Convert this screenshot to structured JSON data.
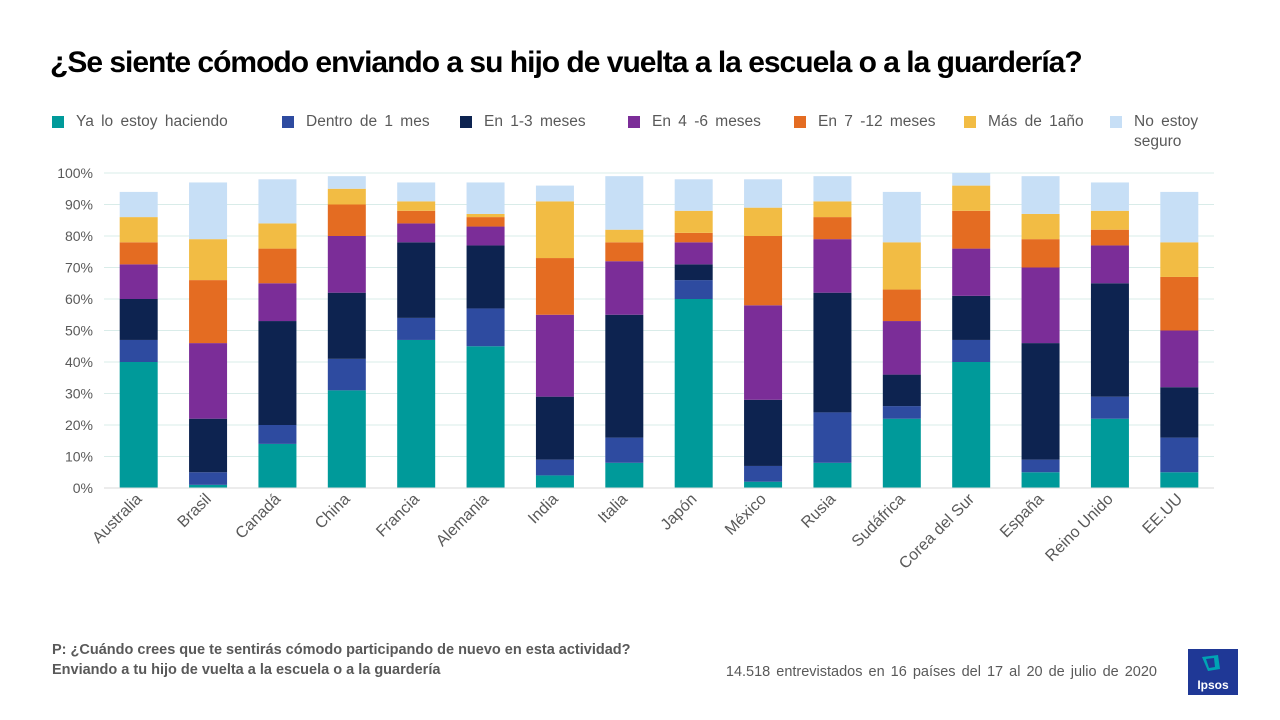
{
  "chart_data": {
    "type": "bar",
    "stacked": true,
    "title": "¿Se siente cómodo enviando a su hijo de vuelta a la escuela o a la guardería?",
    "xlabel": "",
    "ylabel": "",
    "ylim": [
      0,
      100
    ],
    "yticks": [
      "0%",
      "10%",
      "20%",
      "30%",
      "40%",
      "50%",
      "60%",
      "70%",
      "80%",
      "90%",
      "100%"
    ],
    "grid": true,
    "legend_position": "top",
    "categories": [
      "Australia",
      "Brasil",
      "Canadá",
      "China",
      "Francia",
      "Alemania",
      "India",
      "Italia",
      "Japón",
      "México",
      "Rusia",
      "Sudáfrica",
      "Corea del Sur",
      "España",
      "Reino Unido",
      "EE.UU"
    ],
    "series": [
      {
        "name": "Ya lo estoy haciendo",
        "color": "#009a9a",
        "values": [
          40,
          1,
          14,
          31,
          47,
          45,
          4,
          8,
          60,
          2,
          8,
          22,
          40,
          5,
          22,
          5
        ]
      },
      {
        "name": "Dentro de 1 mes",
        "color": "#2e4ba0",
        "values": [
          7,
          4,
          6,
          10,
          7,
          12,
          5,
          8,
          6,
          5,
          16,
          4,
          7,
          4,
          7,
          11
        ]
      },
      {
        "name": "En 1-3 meses",
        "color": "#0d2350",
        "values": [
          13,
          17,
          33,
          21,
          24,
          20,
          20,
          39,
          5,
          21,
          38,
          10,
          14,
          37,
          36,
          16
        ]
      },
      {
        "name": "En 4 -6 meses",
        "color": "#7b2d98",
        "values": [
          11,
          24,
          12,
          18,
          6,
          6,
          26,
          17,
          7,
          30,
          17,
          17,
          15,
          24,
          12,
          18
        ]
      },
      {
        "name": "En 7 -12 meses",
        "color": "#e46c22",
        "values": [
          7,
          20,
          11,
          10,
          4,
          3,
          18,
          6,
          3,
          22,
          7,
          10,
          12,
          9,
          5,
          17
        ]
      },
      {
        "name": "Más de 1año",
        "color": "#f2bc44",
        "values": [
          8,
          13,
          8,
          5,
          3,
          1,
          18,
          4,
          7,
          9,
          5,
          15,
          8,
          8,
          6,
          11
        ]
      },
      {
        "name": "No estoy seguro",
        "color": "#c7dff6",
        "values": [
          8,
          18,
          14,
          4,
          6,
          10,
          5,
          17,
          10,
          9,
          8,
          16,
          4,
          12,
          9,
          16
        ]
      }
    ]
  },
  "legend_lines": [
    [
      "Ya lo estoy haciendo"
    ],
    [
      "Dentro de 1 mes"
    ],
    [
      "En 1-3 meses"
    ],
    [
      "En 4 -6 meses"
    ],
    [
      "En 7 -12 meses"
    ],
    [
      "Más de 1año"
    ],
    [
      "No estoy",
      "seguro"
    ]
  ],
  "question_lines": [
    "P: ¿Cuándo crees que te sentirás cómodo participando de nuevo en esta actividad?",
    "Enviando a tu hijo de vuelta a la escuela o a la guardería"
  ],
  "footnote": "14.518 entrevistados en 16 países del 17 al 20 de julio de 2020",
  "logo_text": "Ipsos",
  "colors": {
    "axis": "#d9d9d9",
    "grid": "#d9ece9",
    "text": "#595959",
    "brand": "#1f3896"
  }
}
